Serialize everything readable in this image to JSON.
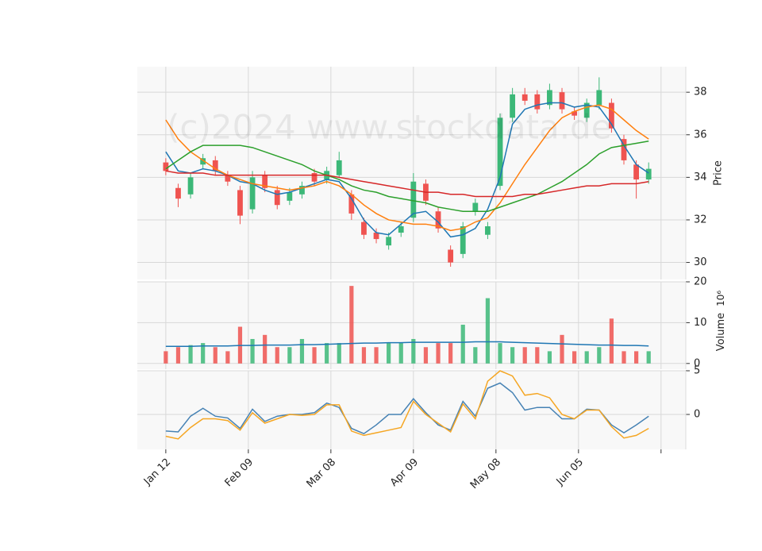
{
  "watermark": "(c)2024 www.stockdata.de",
  "chart_data": [
    {
      "type": "candlestick",
      "ylabel": "Price",
      "x": [
        0,
        3,
        6,
        9,
        12,
        15,
        18,
        21,
        24,
        27,
        30,
        33,
        36,
        39,
        42,
        45,
        48,
        51,
        54,
        57,
        60,
        63,
        66,
        69,
        72,
        75,
        78,
        81,
        84,
        87,
        90,
        93,
        96,
        99,
        102,
        105,
        108,
        111,
        114,
        117
      ],
      "xlim": [
        -6.9,
        126
      ],
      "xticks": [
        {
          "value": 0,
          "label": "Jan 12"
        },
        {
          "value": 20,
          "label": "Feb 09"
        },
        {
          "value": 40,
          "label": "Mar 08"
        },
        {
          "value": 60,
          "label": "Apr 09"
        },
        {
          "value": 80,
          "label": "May 08"
        },
        {
          "value": 100,
          "label": "Jun 05"
        },
        {
          "value": 120,
          "label": null
        }
      ],
      "open": [
        34.7,
        33.5,
        33.2,
        34.6,
        34.8,
        34.1,
        33.4,
        32.5,
        34.1,
        33.4,
        32.9,
        33.2,
        34.2,
        33.9,
        34.1,
        33.2,
        31.9,
        31.4,
        30.8,
        31.4,
        32.1,
        33.7,
        32.4,
        30.6,
        30.4,
        32.4,
        31.3,
        33.6,
        36.8,
        37.9,
        37.9,
        37.4,
        38.0,
        37.1,
        36.8,
        37.4,
        37.5,
        35.8,
        34.6,
        33.9
      ],
      "high": [
        34.9,
        33.7,
        34.2,
        35.1,
        35.0,
        34.3,
        33.6,
        34.3,
        34.3,
        33.6,
        33.5,
        33.8,
        34.4,
        34.5,
        35.2,
        33.4,
        32.1,
        31.6,
        31.4,
        31.9,
        34.2,
        33.9,
        32.6,
        30.8,
        31.9,
        33.0,
        31.9,
        37.0,
        38.2,
        38.2,
        38.1,
        38.4,
        38.2,
        37.3,
        37.7,
        38.7,
        37.7,
        36.0,
        34.8,
        34.7
      ],
      "low": [
        34.1,
        32.6,
        33.0,
        34.4,
        34.1,
        33.6,
        31.8,
        32.3,
        33.3,
        32.5,
        32.7,
        33.0,
        33.6,
        33.7,
        34.0,
        32.0,
        31.1,
        30.9,
        30.6,
        31.2,
        31.9,
        32.7,
        31.4,
        29.8,
        30.2,
        32.2,
        31.1,
        33.4,
        36.6,
        37.4,
        37.0,
        37.2,
        37.0,
        36.7,
        36.6,
        37.2,
        36.1,
        34.6,
        33.0,
        33.7
      ],
      "close": [
        34.3,
        33.0,
        34.0,
        34.9,
        34.3,
        33.8,
        32.2,
        34.0,
        33.5,
        32.7,
        33.3,
        33.6,
        33.8,
        34.3,
        34.8,
        32.3,
        31.3,
        31.1,
        31.2,
        31.7,
        33.8,
        32.9,
        31.6,
        30.0,
        31.7,
        32.8,
        31.7,
        36.8,
        37.9,
        37.6,
        37.2,
        38.1,
        37.2,
        36.9,
        37.5,
        38.1,
        36.3,
        34.8,
        33.9,
        34.4
      ],
      "up_color": "#3cb878",
      "down_color": "#ef5350",
      "series": [
        {
          "color": "#1f77b4",
          "values": [
            35.2,
            34.3,
            34.2,
            34.4,
            34.3,
            34.1,
            33.8,
            33.7,
            33.4,
            33.2,
            33.3,
            33.5,
            33.7,
            33.9,
            33.8,
            33.0,
            32.0,
            31.4,
            31.3,
            31.8,
            32.3,
            32.4,
            31.9,
            31.2,
            31.3,
            31.6,
            32.5,
            34.0,
            36.5,
            37.2,
            37.4,
            37.5,
            37.5,
            37.3,
            37.4,
            37.3,
            36.5,
            35.5,
            34.6,
            34.2
          ]
        },
        {
          "color": "#ff7f0e",
          "values": [
            36.7,
            35.8,
            35.2,
            34.8,
            34.4,
            34.1,
            33.9,
            33.7,
            33.6,
            33.5,
            33.4,
            33.5,
            33.6,
            33.8,
            33.6,
            33.2,
            32.7,
            32.3,
            32.0,
            31.9,
            31.8,
            31.8,
            31.7,
            31.5,
            31.6,
            31.9,
            32.1,
            32.8,
            33.7,
            34.6,
            35.4,
            36.2,
            36.8,
            37.1,
            37.3,
            37.4,
            37.2,
            36.7,
            36.2,
            35.8
          ]
        },
        {
          "color": "#2ca02c",
          "values": [
            34.4,
            34.8,
            35.2,
            35.5,
            35.5,
            35.5,
            35.5,
            35.4,
            35.2,
            35.0,
            34.8,
            34.6,
            34.3,
            34.1,
            33.9,
            33.6,
            33.4,
            33.3,
            33.1,
            33.0,
            32.9,
            32.8,
            32.6,
            32.5,
            32.4,
            32.4,
            32.4,
            32.6,
            32.8,
            33.0,
            33.2,
            33.5,
            33.8,
            34.2,
            34.6,
            35.1,
            35.4,
            35.5,
            35.6,
            35.7
          ]
        },
        {
          "color": "#d62728",
          "values": [
            34.3,
            34.2,
            34.2,
            34.2,
            34.1,
            34.1,
            34.1,
            34.1,
            34.1,
            34.1,
            34.1,
            34.1,
            34.1,
            34.1,
            34.0,
            33.9,
            33.8,
            33.7,
            33.6,
            33.5,
            33.4,
            33.3,
            33.3,
            33.2,
            33.2,
            33.1,
            33.1,
            33.1,
            33.1,
            33.2,
            33.2,
            33.3,
            33.4,
            33.5,
            33.6,
            33.6,
            33.7,
            33.7,
            33.7,
            33.8
          ]
        }
      ],
      "ylim": [
        29.2,
        39.2
      ],
      "yticks": [
        30,
        32,
        34,
        36,
        38
      ],
      "grid": true
    },
    {
      "type": "bar",
      "ylabel": "Volume",
      "multiplier": "10⁶",
      "values": [
        3,
        4,
        4.5,
        5,
        4,
        3,
        9,
        6,
        7,
        4,
        4,
        6,
        4,
        5,
        5,
        19,
        4,
        4,
        5,
        5,
        6,
        4,
        5,
        5,
        9.5,
        4,
        16,
        5,
        4,
        4,
        4,
        3,
        7,
        3,
        3,
        4,
        11,
        3,
        3,
        3
      ],
      "series": [
        {
          "color": "#1f77b4",
          "values": [
            4.2,
            4.2,
            4.2,
            4.3,
            4.3,
            4.3,
            4.4,
            4.4,
            4.5,
            4.5,
            4.5,
            4.6,
            4.6,
            4.7,
            4.8,
            4.9,
            5.0,
            5.0,
            5.1,
            5.1,
            5.2,
            5.2,
            5.2,
            5.2,
            5.2,
            5.3,
            5.3,
            5.3,
            5.2,
            5.1,
            5.0,
            4.9,
            4.8,
            4.7,
            4.6,
            4.5,
            4.5,
            4.4,
            4.4,
            4.3
          ]
        }
      ],
      "ylim": [
        -1.4,
        20
      ],
      "yticks": [
        0,
        10,
        20
      ],
      "grid": true
    },
    {
      "type": "line",
      "series": [
        {
          "color": "#4682b4",
          "values": [
            -1.9,
            -2.0,
            -0.2,
            0.7,
            -0.2,
            -0.4,
            -1.6,
            0.6,
            -0.8,
            -0.2,
            0.0,
            0.0,
            0.2,
            1.3,
            0.8,
            -1.6,
            -2.2,
            -1.2,
            0.0,
            0.0,
            1.8,
            0.2,
            -1.2,
            -1.8,
            1.5,
            -0.2,
            3.0,
            3.6,
            2.5,
            0.5,
            0.8,
            0.8,
            -0.5,
            -0.5,
            0.6,
            0.5,
            -1.2,
            -2.1,
            -1.2,
            -0.2
          ]
        },
        {
          "color": "#f5a623",
          "values": [
            -2.5,
            -2.8,
            -1.5,
            -0.5,
            -0.5,
            -0.7,
            -1.8,
            0.2,
            -1.0,
            -0.5,
            0.0,
            -0.1,
            0.0,
            1.1,
            1.1,
            -1.9,
            -2.4,
            -2.1,
            -1.8,
            -1.5,
            1.5,
            0.0,
            -1.0,
            -2.0,
            1.2,
            -0.5,
            3.8,
            5.0,
            4.4,
            2.2,
            2.4,
            1.9,
            0.0,
            -0.5,
            0.5,
            0.5,
            -1.4,
            -2.7,
            -2.4,
            -1.6
          ]
        }
      ],
      "ylim": [
        -4,
        5
      ],
      "yticks": [
        0,
        5
      ],
      "grid": true
    }
  ]
}
